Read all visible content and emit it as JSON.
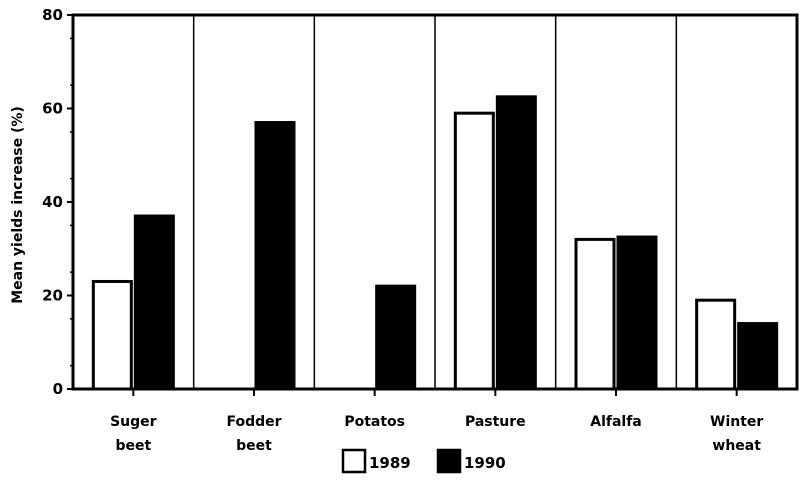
{
  "chart_data": {
    "type": "bar",
    "ylabel": "Mean yields increase (%)",
    "ylim": [
      0,
      80
    ],
    "yticks": [
      "0",
      "20",
      "40",
      "60",
      "80"
    ],
    "categories": [
      [
        "Suger",
        "beet"
      ],
      [
        "Fodder",
        "beet"
      ],
      [
        "Potatos"
      ],
      [
        "Pasture"
      ],
      [
        "Alfalfa"
      ],
      [
        "Winter",
        "wheat"
      ]
    ],
    "series": [
      {
        "name": "1989",
        "values": [
          23,
          null,
          null,
          59,
          32,
          19
        ],
        "color": "#ffffff"
      },
      {
        "name": "1990",
        "values": [
          37,
          57,
          22,
          62.5,
          32.5,
          14
        ],
        "color": "#000000"
      }
    ],
    "grid": "vertical separators between categories",
    "legend": "bottom-center"
  }
}
